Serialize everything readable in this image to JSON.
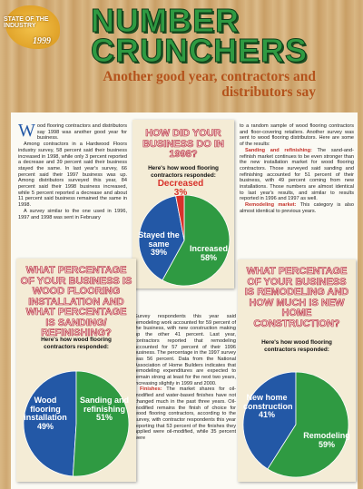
{
  "logo": {
    "line1": "STATE OF THE INDUSTRY",
    "year": "1999"
  },
  "header": {
    "title": "NUMBER CRUNCHERS",
    "subtitle": "Another good year, contractors and distributors say"
  },
  "article": {
    "columns": [
      [
        {
          "text": "Wood flooring contractors and distributors say 1998 was another good year for business."
        },
        {
          "text": "Among contractors in a Hardwood Floors industry survey, 58 percent said their business increased in 1998, while only 3 percent reported a decrease and 39 percent said their business stayed the same. In last year's survey, 66 percent said their 1997 business was up. Among distributors surveyed this year, 84 percent said their 1998 business increased, while 5 percent reported a decrease and about 11 percent said business remained the same in 1998."
        },
        {
          "text": "A survey similar to the one used in 1996, 1997 and 1998 was sent in February"
        }
      ],
      [
        {
          "text": "to a random sample of wood flooring contractors and floor-covering retailers. Another survey was sent to wood flooring distributors. Here are some of the results:"
        },
        {
          "lead": "Sanding and refinishing:",
          "text": "The sand-and-refinish market continues to be even stronger than the new installation market for wood flooring contractors. Those surveyed said sanding and refinishing accounted for 51 percent of their business, with 49 percent coming from new installations. Those numbers are almost identical to last year's results, and similar to results reported in 1996 and 1997 as well."
        },
        {
          "lead": "Remodeling market:",
          "text": "This category is also almost identical to previous years."
        }
      ],
      [
        {
          "text": "Survey respondents this year said remodeling work accounted for 59 percent of the business, with new construction making up the other 41 percent. Last year, contractors reported that remodeling accounted for 57 percent of their 1996 business. The percentage in the 1997 survey was 56 percent. Data from the National Association of Home Builders indicates that remodeling expenditures are expected to remain strong at least for the next two years, increasing slightly in 1999 and 2000."
        },
        {
          "lead": "Finishes:",
          "text": "The market shares for oil-modified and water-based finishes have not changed much in the past three years. Oil-modified remains the finish of choice for wood flooring contractors, according to the survey, with contractor respondents this year reporting that 53 percent of the finishes they applied were oil-modified, while 35 percent were"
        }
      ]
    ]
  },
  "chart_data": [
    {
      "type": "pie",
      "title": "HOW DID YOUR BUSINESS DO IN 1998?",
      "subtitle": "Here's how wood flooring contractors responded:",
      "categories": [
        "Increased",
        "Stayed the same",
        "Decreased"
      ],
      "values": [
        58,
        39,
        3
      ],
      "value_labels": [
        "58%",
        "39%",
        "3%"
      ],
      "colors": [
        "#2f9a42",
        "#2358a6",
        "#d8322b"
      ]
    },
    {
      "type": "pie",
      "title": "WHAT PERCENTAGE OF YOUR BUSINESS IS WOOD FLOORING INSTALLATION AND WHAT PERCENTAGE IS SANDING/ REFINISHING?",
      "subtitle": "Here's how wood flooring contractors responded:",
      "categories": [
        "Wood flooring installation",
        "Sanding and refinishing"
      ],
      "values": [
        49,
        51
      ],
      "value_labels": [
        "49%",
        "51%"
      ],
      "colors": [
        "#2358a6",
        "#2f9a42"
      ]
    },
    {
      "type": "pie",
      "title": "WHAT PERCENTAGE OF YOUR BUSINESS IS REMODELING AND HOW MUCH IS NEW HOME CONSTRUCTION?",
      "subtitle": "Here's how wood flooring contractors responded:",
      "categories": [
        "New home construction",
        "Remodeling"
      ],
      "values": [
        41,
        59
      ],
      "value_labels": [
        "41%",
        "59%"
      ],
      "colors": [
        "#2358a6",
        "#2f9a42"
      ]
    }
  ]
}
